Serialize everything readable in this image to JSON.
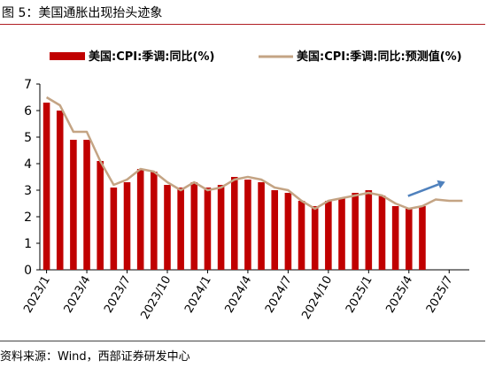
{
  "figure": {
    "title": "图 5：美国通胀出现抬头迹象",
    "source": "资料来源：Wind，西部证券研发中心"
  },
  "colors": {
    "accent": "#b01f24",
    "bar": "#c00000",
    "line": "#c4a484",
    "arrow": "#4f81bd"
  },
  "chart_data": {
    "type": "bar",
    "categories": [
      "2023/1",
      "2023/2",
      "2023/3",
      "2023/4",
      "2023/5",
      "2023/6",
      "2023/7",
      "2023/8",
      "2023/9",
      "2023/10",
      "2023/11",
      "2023/12",
      "2024/1",
      "2024/2",
      "2024/3",
      "2024/4",
      "2024/5",
      "2024/6",
      "2024/7",
      "2024/8",
      "2024/9",
      "2024/10",
      "2024/11",
      "2024/12",
      "2025/1",
      "2025/2",
      "2025/3",
      "2025/4",
      "2025/5",
      "2025/6",
      "2025/7",
      "2025/8"
    ],
    "tick_labels": [
      "2023/1",
      "2023/4",
      "2023/7",
      "2023/10",
      "2024/1",
      "2024/4",
      "2024/7",
      "2024/10",
      "2025/1",
      "2025/4",
      "2025/7"
    ],
    "ylim": [
      0,
      7
    ],
    "yticks": [
      "0",
      "1",
      "2",
      "3",
      "4",
      "5",
      "6",
      "7"
    ],
    "series": [
      {
        "name": "美国:CPI:季调:同比(%)",
        "type": "bar",
        "values": [
          6.3,
          6.0,
          4.9,
          4.9,
          4.1,
          3.1,
          3.3,
          3.8,
          3.7,
          3.2,
          3.1,
          3.3,
          3.1,
          3.2,
          3.5,
          3.4,
          3.3,
          3.0,
          2.9,
          2.6,
          2.4,
          2.6,
          2.7,
          2.9,
          3.0,
          2.8,
          2.4,
          2.3,
          2.4,
          null,
          null,
          null
        ]
      },
      {
        "name": "美国:CPI:季调:同比:预测值(%)",
        "type": "line",
        "values": [
          6.5,
          6.2,
          5.2,
          5.2,
          4.1,
          3.2,
          3.4,
          3.8,
          3.7,
          3.3,
          3.0,
          3.3,
          3.0,
          3.1,
          3.4,
          3.5,
          3.4,
          3.1,
          3.0,
          2.6,
          2.3,
          2.6,
          2.7,
          2.8,
          2.9,
          2.8,
          2.5,
          2.3,
          2.4,
          2.65,
          2.6,
          2.6
        ]
      }
    ],
    "annotation": "upward-arrow"
  }
}
